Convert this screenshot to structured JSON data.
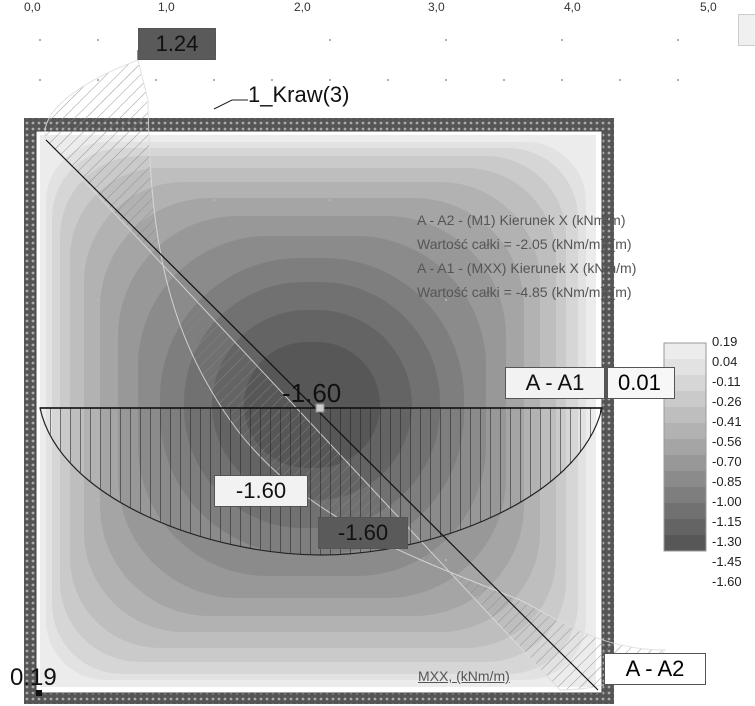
{
  "ruler": {
    "ticks": [
      "0,0",
      "1,0",
      "2,0",
      "3,0",
      "4,0",
      "5,0"
    ]
  },
  "edge_label": "1_Kraw(3)",
  "top_value": "1.24",
  "info_lines": [
    "A - A2 - (M1) Kierunek X (kNm/m)",
    "Wartość całki = -2.05 (kNm/m)*(m)",
    "A - A1 - (MXX) Kierunek X (kNm/m)",
    "Wartość całki = -4.85 (kNm/m)*(m)"
  ],
  "section_labels": {
    "a1": "A - A1",
    "a1_value": "0.01",
    "a2": "A - A2"
  },
  "diagram_values": {
    "center": "-1.60",
    "left_box": "-1.60",
    "dark_box": "-1.60"
  },
  "corner_value": "0.19",
  "result_label": "MXX, (kNm/m)",
  "legend": {
    "values": [
      "0.19",
      "0.04",
      "-0.11",
      "-0.26",
      "-0.41",
      "-0.56",
      "-0.70",
      "-0.85",
      "-1.00",
      "-1.15",
      "-1.30",
      "-1.45",
      "-1.60"
    ],
    "colors": [
      "#ececec",
      "#e2e2e2",
      "#d6d6d6",
      "#cacaca",
      "#bebebe",
      "#b2b2b2",
      "#a5a5a5",
      "#989898",
      "#8b8b8b",
      "#7e7e7e",
      "#717171",
      "#646464",
      "#575757"
    ]
  }
}
